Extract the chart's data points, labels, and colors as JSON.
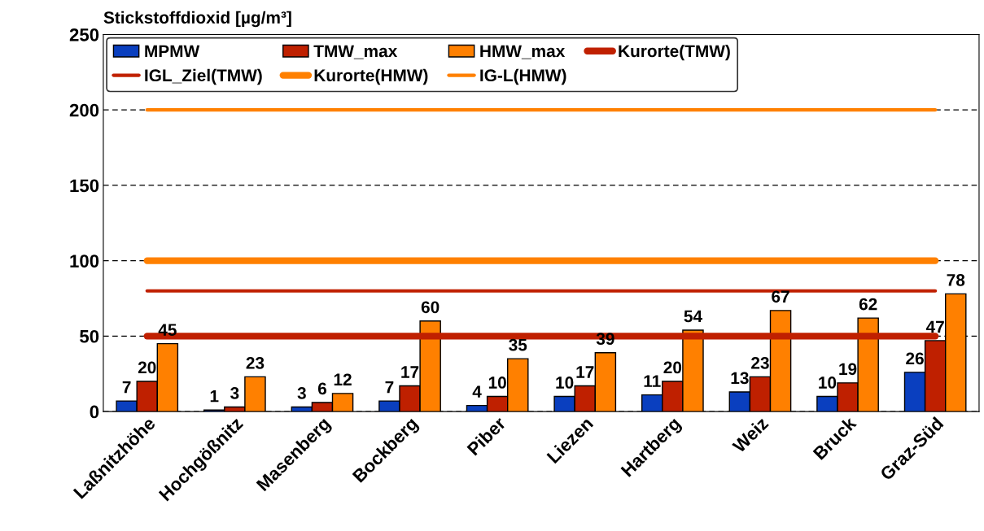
{
  "chart_data": {
    "type": "bar",
    "ylabel": "Stickstoffdioxid [µg/m³]",
    "categories": [
      "Laßnitzhöhe",
      "Hochgößnitz",
      "Masenberg",
      "Bockberg",
      "Piber",
      "Liezen",
      "Hartberg",
      "Weiz",
      "Bruck",
      "Graz-Süd"
    ],
    "series": [
      {
        "name": "MPMW",
        "color": "#0a3fbf",
        "values": [
          7,
          1,
          3,
          7,
          4,
          10,
          11,
          13,
          10,
          26
        ],
        "value_labels": [
          "7",
          "1",
          "3",
          "7",
          "4",
          "10",
          "11",
          "13",
          "10",
          "26"
        ]
      },
      {
        "name": "TMW_max",
        "color": "#bf2000",
        "values": [
          20,
          3,
          6,
          17,
          10,
          17,
          20,
          23,
          19,
          47
        ],
        "value_labels": [
          "20",
          "3",
          "6",
          "17",
          "10",
          "17",
          "20",
          "23",
          "19",
          "47"
        ]
      },
      {
        "name": "HMW_max",
        "color": "#ff8000",
        "values": [
          45,
          23,
          12,
          60,
          35,
          39,
          54,
          67,
          62,
          78
        ],
        "value_labels": [
          "45",
          "23",
          "12",
          "60",
          "35",
          "39",
          "54",
          "67",
          "62",
          "78"
        ]
      },
      {
        "name": "Kurorte(TMW)",
        "type": "line",
        "color": "#c02000",
        "values": [
          50,
          50,
          50,
          50,
          50,
          50,
          50,
          50,
          50,
          50
        ]
      },
      {
        "name": "IGL_Ziel(TMW)",
        "type": "line",
        "color": "#c02000",
        "values": [
          80,
          80,
          80,
          80,
          80,
          80,
          80,
          80,
          80,
          80
        ]
      },
      {
        "name": "Kurorte(HMW)",
        "type": "line",
        "color": "#ff8000",
        "values": [
          100,
          100,
          100,
          100,
          100,
          100,
          100,
          100,
          100,
          100
        ]
      },
      {
        "name": "IG-L(HMW)",
        "type": "line",
        "color": "#ff8000",
        "values": [
          200,
          200,
          200,
          200,
          200,
          200,
          200,
          200,
          200,
          200
        ]
      }
    ],
    "ylim": [
      0,
      250
    ],
    "yticks": [
      0,
      50,
      100,
      150,
      200,
      250
    ],
    "grid": "y",
    "legend": "top"
  }
}
